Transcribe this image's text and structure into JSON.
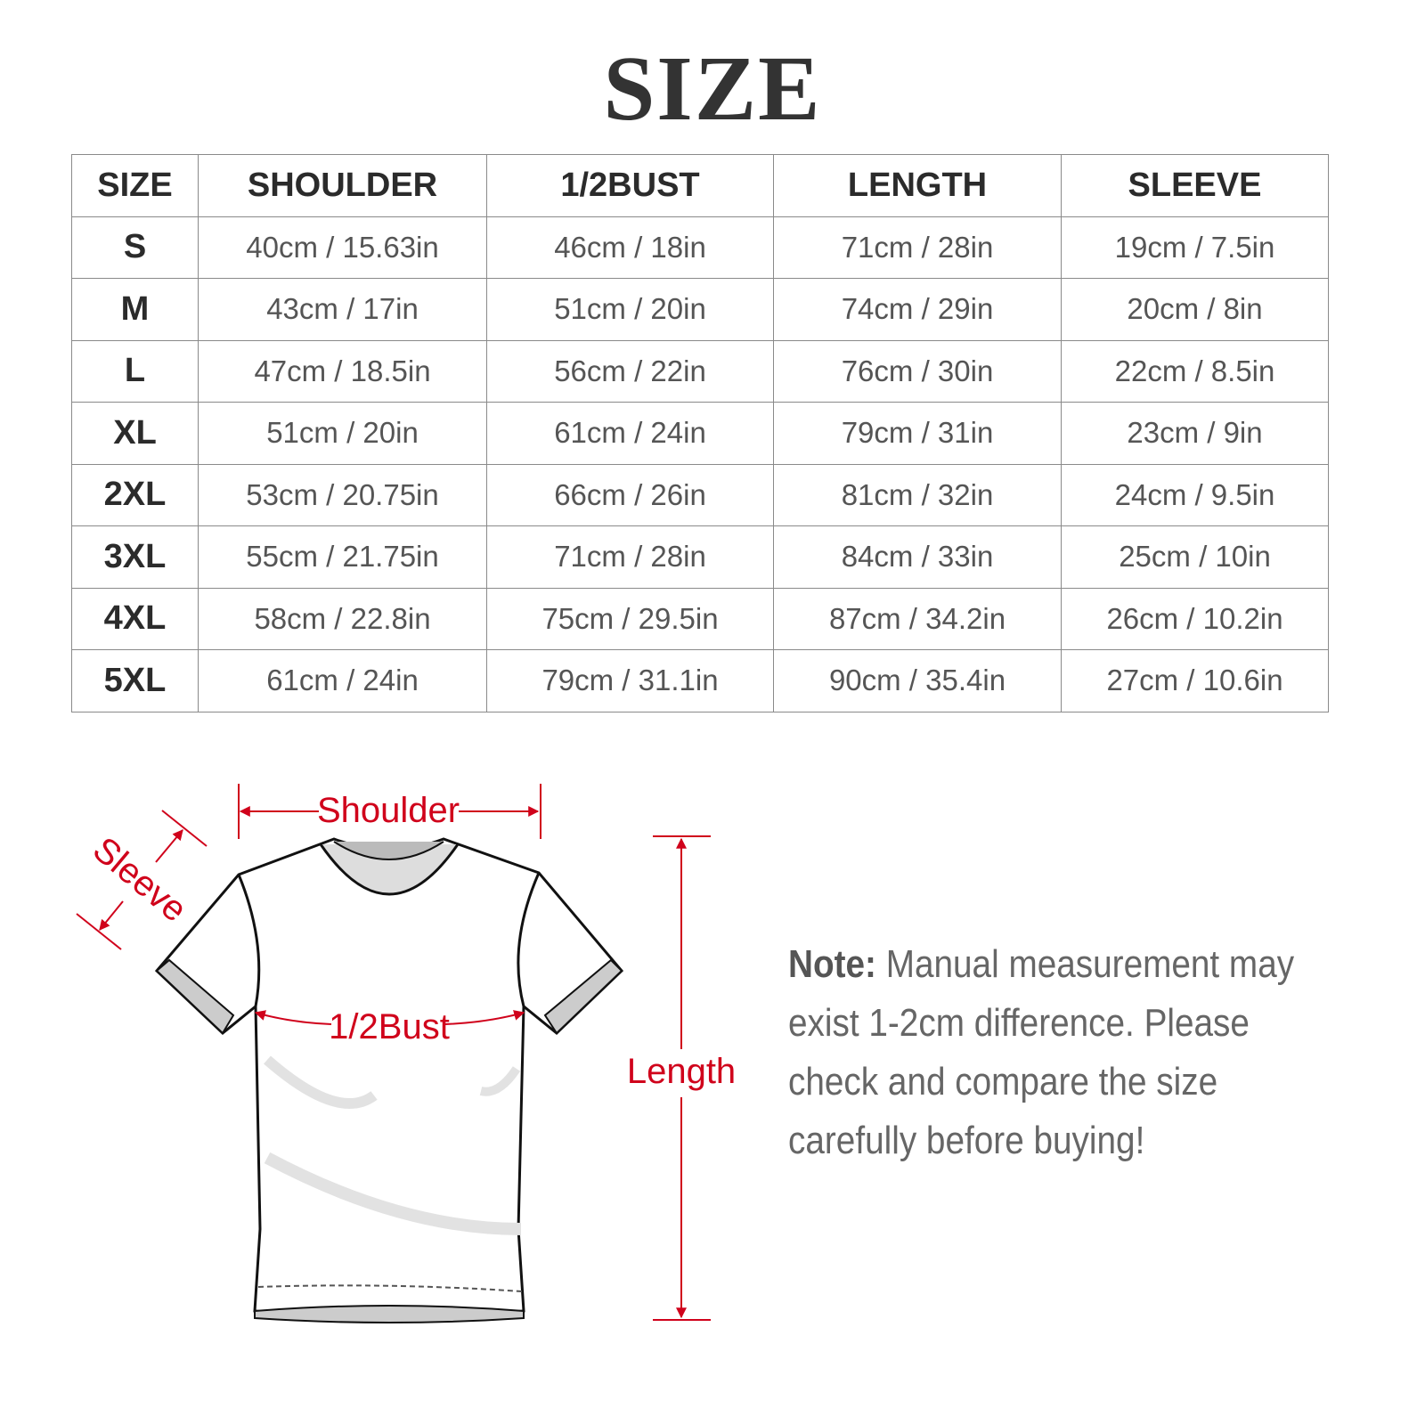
{
  "title": "SIZE",
  "table": {
    "headers": [
      "SIZE",
      "SHOULDER",
      "1/2BUST",
      "LENGTH",
      "SLEEVE"
    ],
    "rows": [
      [
        "S",
        "40cm / 15.63in",
        "46cm / 18in",
        "71cm / 28in",
        "19cm / 7.5in"
      ],
      [
        "M",
        "43cm / 17in",
        "51cm / 20in",
        "74cm / 29in",
        "20cm / 8in"
      ],
      [
        "L",
        "47cm / 18.5in",
        "56cm / 22in",
        "76cm / 30in",
        "22cm / 8.5in"
      ],
      [
        "XL",
        "51cm / 20in",
        "61cm / 24in",
        "79cm / 31in",
        "23cm / 9in"
      ],
      [
        "2XL",
        "53cm / 20.75in",
        "66cm / 26in",
        "81cm / 32in",
        "24cm / 9.5in"
      ],
      [
        "3XL",
        "55cm / 21.75in",
        "71cm / 28in",
        "84cm / 33in",
        "25cm / 10in"
      ],
      [
        "4XL",
        "58cm / 22.8in",
        "75cm / 29.5in",
        "87cm / 34.2in",
        "26cm / 10.2in"
      ],
      [
        "5XL",
        "61cm / 24in",
        "79cm / 31.1in",
        "90cm / 35.4in",
        "27cm / 10.6in"
      ]
    ]
  },
  "diagram": {
    "labels": {
      "shoulder": "Shoulder",
      "sleeve": "Sleeve",
      "bust": "1/2Bust",
      "length": "Length"
    },
    "accent_color": "#d0021b"
  },
  "note": {
    "label": "Note:",
    "text": " Manual measurement may exist 1-2cm difference. Please check and compare the size carefully before buying!"
  }
}
